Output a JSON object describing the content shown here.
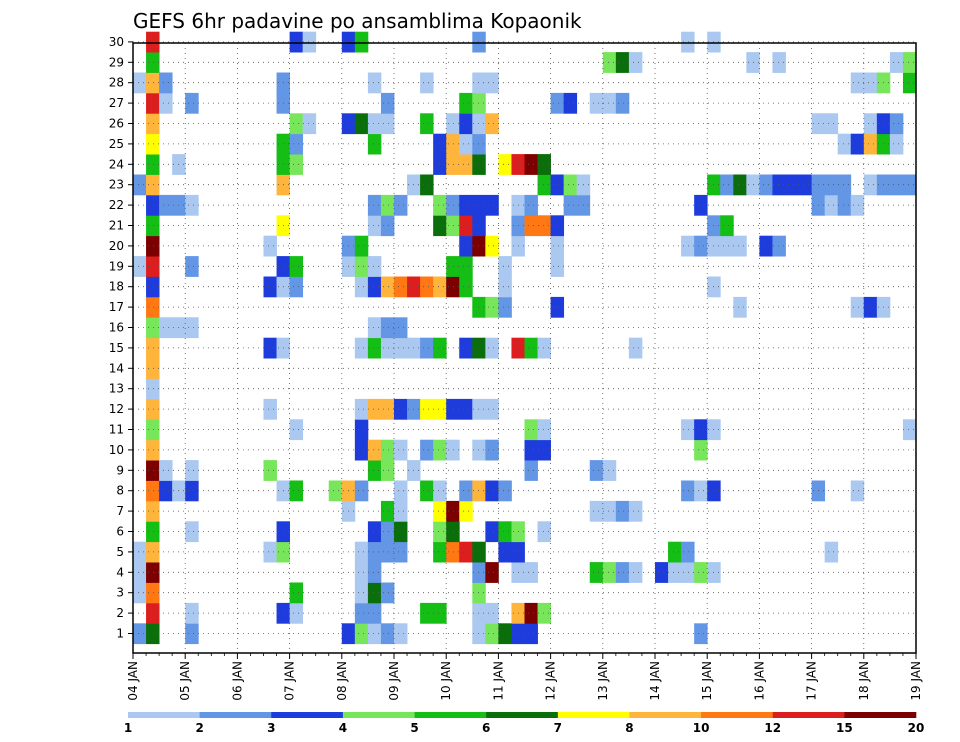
{
  "chart_data": {
    "type": "heatmap",
    "title": "GEFS 6hr padavine po ansamblima Kopaonik",
    "xlabel": "",
    "ylabel": "",
    "x_tick_labels": [
      "04 JAN",
      "05 JAN",
      "06 JAN",
      "07 JAN",
      "08 JAN",
      "09 JAN",
      "10 JAN",
      "11 JAN",
      "12 JAN",
      "13 JAN",
      "14 JAN",
      "15 JAN",
      "16 JAN",
      "17 JAN",
      "18 JAN",
      "19 JAN"
    ],
    "y_tick_labels": [
      "1",
      "2",
      "3",
      "4",
      "5",
      "6",
      "7",
      "8",
      "9",
      "10",
      "11",
      "12",
      "13",
      "14",
      "15",
      "16",
      "17",
      "18",
      "19",
      "20",
      "21",
      "22",
      "23",
      "24",
      "25",
      "26",
      "27",
      "28",
      "29",
      "30"
    ],
    "time_steps_per_day": 4,
    "n_time_steps": 60,
    "n_members": 30,
    "grid": true,
    "legend_position": "bottom",
    "legend_labels": [
      "1",
      "2",
      "3",
      "4",
      "5",
      "6",
      "7",
      "8",
      "10",
      "12",
      "15",
      "20"
    ],
    "colors": [
      "#aac8f0",
      "#6496e6",
      "#1e3cdc",
      "#78e65a",
      "#14be14",
      "#0a6e0a",
      "#ffff00",
      "#ffb43c",
      "#ff7814",
      "#dc1e1e",
      "#7d0000"
    ],
    "colormap": {
      "L": "#aac8f0",
      "M": "#6496e6",
      "B": "#1e3cdc",
      "g": "#78e65a",
      "G": "#14be14",
      "D": "#0a6e0a",
      "Y": "#ffff00",
      "O": "#ffb43c",
      "o": "#ff7814",
      "R": "#dc1e1e",
      "K": "#7d0000"
    },
    "rows": {
      "30": [
        "1R",
        "12B",
        "13L",
        "16B",
        "17G",
        "26M",
        "42L",
        "44L"
      ],
      "29": [
        "1G",
        "36g",
        "37D",
        "38L",
        "47L",
        "49L",
        "58L",
        "59g"
      ],
      "28": [
        "0L",
        "1O",
        "2M",
        "11M",
        "18L",
        "22L",
        "26L",
        "27L",
        "55L",
        "56L",
        "57g",
        "59G"
      ],
      "27": [
        "1R",
        "2L",
        "4M",
        "11M",
        "19M",
        "25G",
        "26g",
        "32M",
        "33B",
        "35L",
        "36L",
        "37M"
      ],
      "26": [
        "1O",
        "12g",
        "13L",
        "16B",
        "17D",
        "18L",
        "19L",
        "22G",
        "24L",
        "25B",
        "26L",
        "27O",
        "52L",
        "53L",
        "56L",
        "57B",
        "58M"
      ],
      "25": [
        "1Y",
        "11G",
        "12M",
        "18G",
        "23B",
        "24O",
        "25L",
        "26M",
        "54L",
        "55B",
        "56O",
        "57G",
        "58L"
      ],
      "24": [
        "1G",
        "3L",
        "11G",
        "12g",
        "23B",
        "24O",
        "25O",
        "26D",
        "28Y",
        "29R",
        "30K",
        "31D"
      ],
      "23": [
        "0M",
        "1O",
        "11O",
        "21L",
        "22D",
        "31G",
        "32B",
        "33g",
        "34L",
        "44G",
        "45M",
        "46D",
        "47L",
        "48M",
        "49B",
        "50B",
        "51B",
        "52M",
        "53M",
        "54M",
        "56L",
        "57M",
        "58M",
        "59M"
      ],
      "22": [
        "1B",
        "2M",
        "3M",
        "4L",
        "18M",
        "19g",
        "20M",
        "23g",
        "24M",
        "25B",
        "26B",
        "27B",
        "29L",
        "30M",
        "33M",
        "34M",
        "43B",
        "52M",
        "53L",
        "54M",
        "55L"
      ],
      "21": [
        "1G",
        "11Y",
        "18L",
        "19M",
        "23D",
        "24g",
        "25R",
        "26B",
        "29M",
        "30o",
        "31o",
        "32B",
        "44M",
        "45G"
      ],
      "20": [
        "1K",
        "10L",
        "16M",
        "17G",
        "25B",
        "26K",
        "27Y",
        "29L",
        "32L",
        "42L",
        "43M",
        "44L",
        "45L",
        "46L",
        "48B",
        "49M"
      ],
      "19": [
        "0L",
        "1R",
        "4M",
        "11B",
        "12G",
        "16L",
        "17g",
        "18L",
        "24G",
        "25G",
        "28L",
        "32L"
      ],
      "18": [
        "1B",
        "10B",
        "11L",
        "12M",
        "17L",
        "18B",
        "19O",
        "20o",
        "21R",
        "22o",
        "23O",
        "24K",
        "25G",
        "28L",
        "44L"
      ],
      "17": [
        "1o",
        "26G",
        "27g",
        "28M",
        "32B",
        "46L",
        "55L",
        "56B",
        "57L"
      ],
      "16": [
        "1g",
        "2L",
        "3L",
        "4L",
        "18L",
        "19M",
        "20M"
      ],
      "15": [
        "1O",
        "10B",
        "11L",
        "17L",
        "18G",
        "19L",
        "20L",
        "21L",
        "22M",
        "23G",
        "25B",
        "26D",
        "27L",
        "29R",
        "30G",
        "31L",
        "38L"
      ],
      "14": [
        "1O"
      ],
      "13": [
        "1L"
      ],
      "12": [
        "1O",
        "10L",
        "17L",
        "18O",
        "19O",
        "20B",
        "21M",
        "22Y",
        "23Y",
        "24B",
        "25B",
        "26L",
        "27L"
      ],
      "11": [
        "1g",
        "12L",
        "17B",
        "30g",
        "31L",
        "42L",
        "43B",
        "44L",
        "59L"
      ],
      "10": [
        "1O",
        "17B",
        "18O",
        "19g",
        "20L",
        "22M",
        "23g",
        "24L",
        "26L",
        "27M",
        "30B",
        "31B",
        "43g"
      ],
      "9": [
        "1K",
        "2L",
        "4L",
        "10g",
        "18G",
        "19g",
        "21L",
        "30M",
        "35M",
        "36L"
      ],
      "8": [
        "1o",
        "2B",
        "3L",
        "4B",
        "11L",
        "12G",
        "15g",
        "16O",
        "17M",
        "20L",
        "22G",
        "23L",
        "25M",
        "26O",
        "27B",
        "28M",
        "42M",
        "43L",
        "44B",
        "52M",
        "55L"
      ],
      "7": [
        "1O",
        "16L",
        "19G",
        "20L",
        "23Y",
        "24K",
        "25Y",
        "35L",
        "36L",
        "37M",
        "38L"
      ],
      "6": [
        "1G",
        "4L",
        "11B",
        "18B",
        "19M",
        "20D",
        "23g",
        "24D",
        "27B",
        "28G",
        "29g",
        "31L"
      ],
      "5": [
        "0L",
        "1O",
        "10L",
        "11g",
        "17L",
        "18M",
        "19M",
        "20M",
        "23G",
        "24o",
        "25R",
        "26D",
        "28B",
        "29B",
        "41G",
        "42M",
        "53L"
      ],
      "4": [
        "0L",
        "1K",
        "17L",
        "18M",
        "26M",
        "27K",
        "29L",
        "30L",
        "35G",
        "36g",
        "37M",
        "38L",
        "40B",
        "41L",
        "42L",
        "43g",
        "44L"
      ],
      "3": [
        "0L",
        "1o",
        "12G",
        "17L",
        "18D",
        "19M",
        "26g"
      ],
      "2": [
        "1R",
        "4L",
        "11B",
        "12L",
        "17M",
        "18M",
        "22G",
        "23G",
        "26L",
        "27L",
        "29O",
        "30K",
        "31g"
      ],
      "1": [
        "0M",
        "1D",
        "4M",
        "16B",
        "17g",
        "18L",
        "19M",
        "20L",
        "26L",
        "27g",
        "28D",
        "29B",
        "30B",
        "43M"
      ]
    }
  }
}
